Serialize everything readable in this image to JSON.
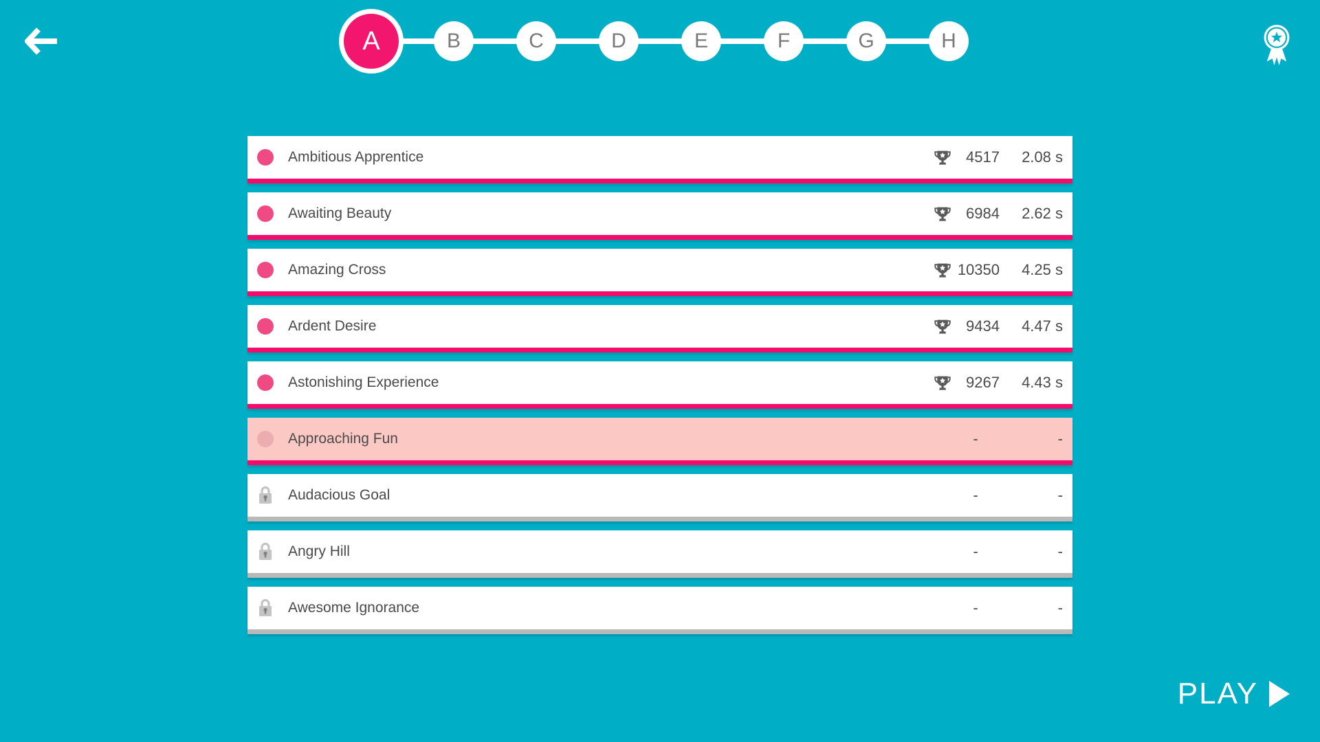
{
  "colors": {
    "background": "#00AEC5",
    "accent_pink": "#F20C6C",
    "dot_pink": "#EF4B82",
    "current_row_bg": "#FBC8C3",
    "current_dot": "#EBADAF",
    "locked_gray": "#B9B9B9",
    "text_dark": "#4A4A4A",
    "white": "#FFFFFF"
  },
  "header": {
    "back_icon": "arrow-left",
    "medal_icon": "award-ribbon",
    "steps": [
      {
        "label": "A",
        "selected": true
      },
      {
        "label": "B",
        "selected": false
      },
      {
        "label": "C",
        "selected": false
      },
      {
        "label": "D",
        "selected": false
      },
      {
        "label": "E",
        "selected": false
      },
      {
        "label": "F",
        "selected": false
      },
      {
        "label": "G",
        "selected": false
      },
      {
        "label": "H",
        "selected": false
      }
    ]
  },
  "levels": [
    {
      "name": "Ambitious Apprentice",
      "state": "completed",
      "score": "4517",
      "time": "2.08 s"
    },
    {
      "name": "Awaiting Beauty",
      "state": "completed",
      "score": "6984",
      "time": "2.62 s"
    },
    {
      "name": "Amazing Cross",
      "state": "completed",
      "score": "10350",
      "time": "4.25 s"
    },
    {
      "name": "Ardent Desire",
      "state": "completed",
      "score": "9434",
      "time": "4.47 s"
    },
    {
      "name": "Astonishing Experience",
      "state": "completed",
      "score": "9267",
      "time": "4.43 s"
    },
    {
      "name": "Approaching Fun",
      "state": "current",
      "score": "-",
      "time": "-"
    },
    {
      "name": "Audacious Goal",
      "state": "locked",
      "score": "-",
      "time": "-"
    },
    {
      "name": "Angry Hill",
      "state": "locked",
      "score": "-",
      "time": "-"
    },
    {
      "name": "Awesome Ignorance",
      "state": "locked",
      "score": "-",
      "time": "-"
    }
  ],
  "footer": {
    "play_label": "PLAY",
    "play_icon": "play-triangle"
  }
}
